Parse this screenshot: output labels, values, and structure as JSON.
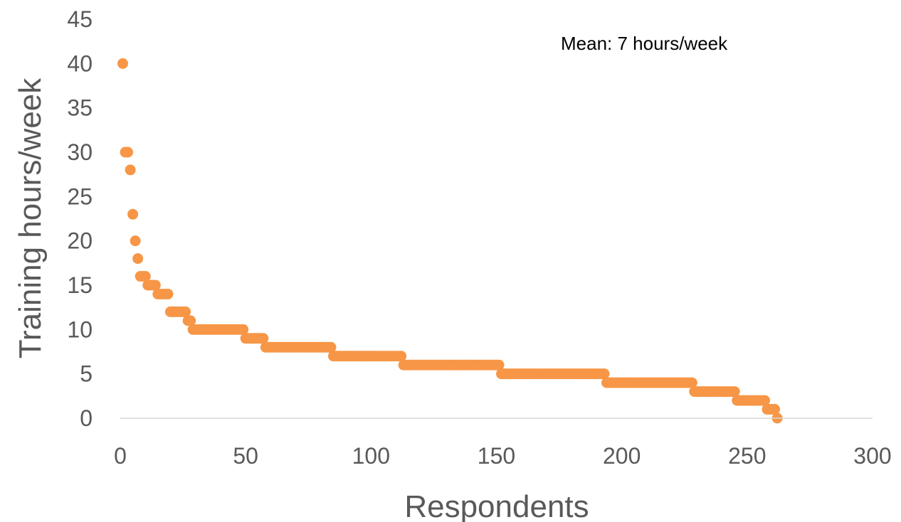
{
  "chart_data": {
    "type": "scatter",
    "title": "",
    "xlabel": "Respondents",
    "ylabel": "Training hours/week",
    "xlim": [
      0,
      300
    ],
    "ylim": [
      0,
      45
    ],
    "x_ticks": [
      0,
      50,
      100,
      150,
      200,
      250,
      300
    ],
    "y_ticks": [
      0,
      5,
      10,
      15,
      20,
      25,
      30,
      35,
      40,
      45
    ],
    "grid": false,
    "legend": "none",
    "annotation": "Mean: 7 hours/week",
    "color": "#F79646",
    "series": [
      {
        "points": [
          {
            "x": 1,
            "y": 40
          },
          {
            "x": 2,
            "y": 30
          },
          {
            "x": 3,
            "y": 30
          },
          {
            "x": 4,
            "y": 28
          },
          {
            "x": 5,
            "y": 23
          },
          {
            "x": 6,
            "y": 20
          },
          {
            "x": 7,
            "y": 18
          },
          {
            "x": 8,
            "y": 16
          },
          {
            "x": 9,
            "y": 16
          },
          {
            "x": 10,
            "y": 16
          },
          {
            "x": 11,
            "y": 15
          },
          {
            "x": 12,
            "y": 15
          },
          {
            "x": 13,
            "y": 15
          },
          {
            "x": 14,
            "y": 15
          },
          {
            "x": 15,
            "y": 14
          },
          {
            "x": 16,
            "y": 14
          },
          {
            "x": 17,
            "y": 14
          },
          {
            "x": 18,
            "y": 14
          },
          {
            "x": 19,
            "y": 14
          },
          {
            "x": 20,
            "y": 12
          },
          {
            "x": 21,
            "y": 12
          },
          {
            "x": 22,
            "y": 12
          },
          {
            "x": 23,
            "y": 12
          },
          {
            "x": 24,
            "y": 12
          },
          {
            "x": 25,
            "y": 12
          },
          {
            "x": 26,
            "y": 12
          },
          {
            "x": 27,
            "y": 11
          },
          {
            "x": 28,
            "y": 11
          },
          {
            "x": 29,
            "y": 10
          },
          {
            "x": 30,
            "y": 10
          },
          {
            "x": 31,
            "y": 10
          },
          {
            "x": 32,
            "y": 10
          },
          {
            "x": 33,
            "y": 10
          },
          {
            "x": 34,
            "y": 10
          },
          {
            "x": 35,
            "y": 10
          },
          {
            "x": 36,
            "y": 10
          },
          {
            "x": 37,
            "y": 10
          },
          {
            "x": 38,
            "y": 10
          },
          {
            "x": 39,
            "y": 10
          },
          {
            "x": 40,
            "y": 10
          },
          {
            "x": 41,
            "y": 10
          },
          {
            "x": 42,
            "y": 10
          },
          {
            "x": 43,
            "y": 10
          },
          {
            "x": 44,
            "y": 10
          },
          {
            "x": 45,
            "y": 10
          },
          {
            "x": 46,
            "y": 10
          },
          {
            "x": 47,
            "y": 10
          },
          {
            "x": 48,
            "y": 10
          },
          {
            "x": 49,
            "y": 10
          },
          {
            "x": 50,
            "y": 9
          },
          {
            "x": 51,
            "y": 9
          },
          {
            "x": 52,
            "y": 9
          },
          {
            "x": 53,
            "y": 9
          },
          {
            "x": 54,
            "y": 9
          },
          {
            "x": 55,
            "y": 9
          },
          {
            "x": 56,
            "y": 9
          },
          {
            "x": 57,
            "y": 9
          },
          {
            "x": 58,
            "y": 8
          },
          {
            "x": 59,
            "y": 8
          },
          {
            "x": 60,
            "y": 8
          },
          {
            "x": 61,
            "y": 8
          },
          {
            "x": 62,
            "y": 8
          },
          {
            "x": 63,
            "y": 8
          },
          {
            "x": 64,
            "y": 8
          },
          {
            "x": 65,
            "y": 8
          },
          {
            "x": 66,
            "y": 8
          },
          {
            "x": 67,
            "y": 8
          },
          {
            "x": 68,
            "y": 8
          },
          {
            "x": 69,
            "y": 8
          },
          {
            "x": 70,
            "y": 8
          },
          {
            "x": 71,
            "y": 8
          },
          {
            "x": 72,
            "y": 8
          },
          {
            "x": 73,
            "y": 8
          },
          {
            "x": 74,
            "y": 8
          },
          {
            "x": 75,
            "y": 8
          },
          {
            "x": 76,
            "y": 8
          },
          {
            "x": 77,
            "y": 8
          },
          {
            "x": 78,
            "y": 8
          },
          {
            "x": 79,
            "y": 8
          },
          {
            "x": 80,
            "y": 8
          },
          {
            "x": 81,
            "y": 8
          },
          {
            "x": 82,
            "y": 8
          },
          {
            "x": 83,
            "y": 8
          },
          {
            "x": 84,
            "y": 8
          },
          {
            "x": 85,
            "y": 7
          },
          {
            "x": 86,
            "y": 7
          },
          {
            "x": 87,
            "y": 7
          },
          {
            "x": 88,
            "y": 7
          },
          {
            "x": 89,
            "y": 7
          },
          {
            "x": 90,
            "y": 7
          },
          {
            "x": 91,
            "y": 7
          },
          {
            "x": 92,
            "y": 7
          },
          {
            "x": 93,
            "y": 7
          },
          {
            "x": 94,
            "y": 7
          },
          {
            "x": 95,
            "y": 7
          },
          {
            "x": 96,
            "y": 7
          },
          {
            "x": 97,
            "y": 7
          },
          {
            "x": 98,
            "y": 7
          },
          {
            "x": 99,
            "y": 7
          },
          {
            "x": 100,
            "y": 7
          },
          {
            "x": 101,
            "y": 7
          },
          {
            "x": 102,
            "y": 7
          },
          {
            "x": 103,
            "y": 7
          },
          {
            "x": 104,
            "y": 7
          },
          {
            "x": 105,
            "y": 7
          },
          {
            "x": 106,
            "y": 7
          },
          {
            "x": 107,
            "y": 7
          },
          {
            "x": 108,
            "y": 7
          },
          {
            "x": 109,
            "y": 7
          },
          {
            "x": 110,
            "y": 7
          },
          {
            "x": 111,
            "y": 7
          },
          {
            "x": 112,
            "y": 7
          },
          {
            "x": 113,
            "y": 6
          },
          {
            "x": 114,
            "y": 6
          },
          {
            "x": 115,
            "y": 6
          },
          {
            "x": 116,
            "y": 6
          },
          {
            "x": 117,
            "y": 6
          },
          {
            "x": 118,
            "y": 6
          },
          {
            "x": 119,
            "y": 6
          },
          {
            "x": 120,
            "y": 6
          },
          {
            "x": 121,
            "y": 6
          },
          {
            "x": 122,
            "y": 6
          },
          {
            "x": 123,
            "y": 6
          },
          {
            "x": 124,
            "y": 6
          },
          {
            "x": 125,
            "y": 6
          },
          {
            "x": 126,
            "y": 6
          },
          {
            "x": 127,
            "y": 6
          },
          {
            "x": 128,
            "y": 6
          },
          {
            "x": 129,
            "y": 6
          },
          {
            "x": 130,
            "y": 6
          },
          {
            "x": 131,
            "y": 6
          },
          {
            "x": 132,
            "y": 6
          },
          {
            "x": 133,
            "y": 6
          },
          {
            "x": 134,
            "y": 6
          },
          {
            "x": 135,
            "y": 6
          },
          {
            "x": 136,
            "y": 6
          },
          {
            "x": 137,
            "y": 6
          },
          {
            "x": 138,
            "y": 6
          },
          {
            "x": 139,
            "y": 6
          },
          {
            "x": 140,
            "y": 6
          },
          {
            "x": 141,
            "y": 6
          },
          {
            "x": 142,
            "y": 6
          },
          {
            "x": 143,
            "y": 6
          },
          {
            "x": 144,
            "y": 6
          },
          {
            "x": 145,
            "y": 6
          },
          {
            "x": 146,
            "y": 6
          },
          {
            "x": 147,
            "y": 6
          },
          {
            "x": 148,
            "y": 6
          },
          {
            "x": 149,
            "y": 6
          },
          {
            "x": 150,
            "y": 6
          },
          {
            "x": 151,
            "y": 6
          },
          {
            "x": 152,
            "y": 5
          },
          {
            "x": 153,
            "y": 5
          },
          {
            "x": 154,
            "y": 5
          },
          {
            "x": 155,
            "y": 5
          },
          {
            "x": 156,
            "y": 5
          },
          {
            "x": 157,
            "y": 5
          },
          {
            "x": 158,
            "y": 5
          },
          {
            "x": 159,
            "y": 5
          },
          {
            "x": 160,
            "y": 5
          },
          {
            "x": 161,
            "y": 5
          },
          {
            "x": 162,
            "y": 5
          },
          {
            "x": 163,
            "y": 5
          },
          {
            "x": 164,
            "y": 5
          },
          {
            "x": 165,
            "y": 5
          },
          {
            "x": 166,
            "y": 5
          },
          {
            "x": 167,
            "y": 5
          },
          {
            "x": 168,
            "y": 5
          },
          {
            "x": 169,
            "y": 5
          },
          {
            "x": 170,
            "y": 5
          },
          {
            "x": 171,
            "y": 5
          },
          {
            "x": 172,
            "y": 5
          },
          {
            "x": 173,
            "y": 5
          },
          {
            "x": 174,
            "y": 5
          },
          {
            "x": 175,
            "y": 5
          },
          {
            "x": 176,
            "y": 5
          },
          {
            "x": 177,
            "y": 5
          },
          {
            "x": 178,
            "y": 5
          },
          {
            "x": 179,
            "y": 5
          },
          {
            "x": 180,
            "y": 5
          },
          {
            "x": 181,
            "y": 5
          },
          {
            "x": 182,
            "y": 5
          },
          {
            "x": 183,
            "y": 5
          },
          {
            "x": 184,
            "y": 5
          },
          {
            "x": 185,
            "y": 5
          },
          {
            "x": 186,
            "y": 5
          },
          {
            "x": 187,
            "y": 5
          },
          {
            "x": 188,
            "y": 5
          },
          {
            "x": 189,
            "y": 5
          },
          {
            "x": 190,
            "y": 5
          },
          {
            "x": 191,
            "y": 5
          },
          {
            "x": 192,
            "y": 5
          },
          {
            "x": 193,
            "y": 5
          },
          {
            "x": 194,
            "y": 4
          },
          {
            "x": 195,
            "y": 4
          },
          {
            "x": 196,
            "y": 4
          },
          {
            "x": 197,
            "y": 4
          },
          {
            "x": 198,
            "y": 4
          },
          {
            "x": 199,
            "y": 4
          },
          {
            "x": 200,
            "y": 4
          },
          {
            "x": 201,
            "y": 4
          },
          {
            "x": 202,
            "y": 4
          },
          {
            "x": 203,
            "y": 4
          },
          {
            "x": 204,
            "y": 4
          },
          {
            "x": 205,
            "y": 4
          },
          {
            "x": 206,
            "y": 4
          },
          {
            "x": 207,
            "y": 4
          },
          {
            "x": 208,
            "y": 4
          },
          {
            "x": 209,
            "y": 4
          },
          {
            "x": 210,
            "y": 4
          },
          {
            "x": 211,
            "y": 4
          },
          {
            "x": 212,
            "y": 4
          },
          {
            "x": 213,
            "y": 4
          },
          {
            "x": 214,
            "y": 4
          },
          {
            "x": 215,
            "y": 4
          },
          {
            "x": 216,
            "y": 4
          },
          {
            "x": 217,
            "y": 4
          },
          {
            "x": 218,
            "y": 4
          },
          {
            "x": 219,
            "y": 4
          },
          {
            "x": 220,
            "y": 4
          },
          {
            "x": 221,
            "y": 4
          },
          {
            "x": 222,
            "y": 4
          },
          {
            "x": 223,
            "y": 4
          },
          {
            "x": 224,
            "y": 4
          },
          {
            "x": 225,
            "y": 4
          },
          {
            "x": 226,
            "y": 4
          },
          {
            "x": 227,
            "y": 4
          },
          {
            "x": 228,
            "y": 4
          },
          {
            "x": 229,
            "y": 3
          },
          {
            "x": 230,
            "y": 3
          },
          {
            "x": 231,
            "y": 3
          },
          {
            "x": 232,
            "y": 3
          },
          {
            "x": 233,
            "y": 3
          },
          {
            "x": 234,
            "y": 3
          },
          {
            "x": 235,
            "y": 3
          },
          {
            "x": 236,
            "y": 3
          },
          {
            "x": 237,
            "y": 3
          },
          {
            "x": 238,
            "y": 3
          },
          {
            "x": 239,
            "y": 3
          },
          {
            "x": 240,
            "y": 3
          },
          {
            "x": 241,
            "y": 3
          },
          {
            "x": 242,
            "y": 3
          },
          {
            "x": 243,
            "y": 3
          },
          {
            "x": 244,
            "y": 3
          },
          {
            "x": 245,
            "y": 3
          },
          {
            "x": 246,
            "y": 2
          },
          {
            "x": 247,
            "y": 2
          },
          {
            "x": 248,
            "y": 2
          },
          {
            "x": 249,
            "y": 2
          },
          {
            "x": 250,
            "y": 2
          },
          {
            "x": 251,
            "y": 2
          },
          {
            "x": 252,
            "y": 2
          },
          {
            "x": 253,
            "y": 2
          },
          {
            "x": 254,
            "y": 2
          },
          {
            "x": 255,
            "y": 2
          },
          {
            "x": 256,
            "y": 2
          },
          {
            "x": 257,
            "y": 2
          },
          {
            "x": 258,
            "y": 1
          },
          {
            "x": 259,
            "y": 1
          },
          {
            "x": 260,
            "y": 1
          },
          {
            "x": 261,
            "y": 1
          },
          {
            "x": 262,
            "y": 0
          }
        ]
      }
    ]
  }
}
